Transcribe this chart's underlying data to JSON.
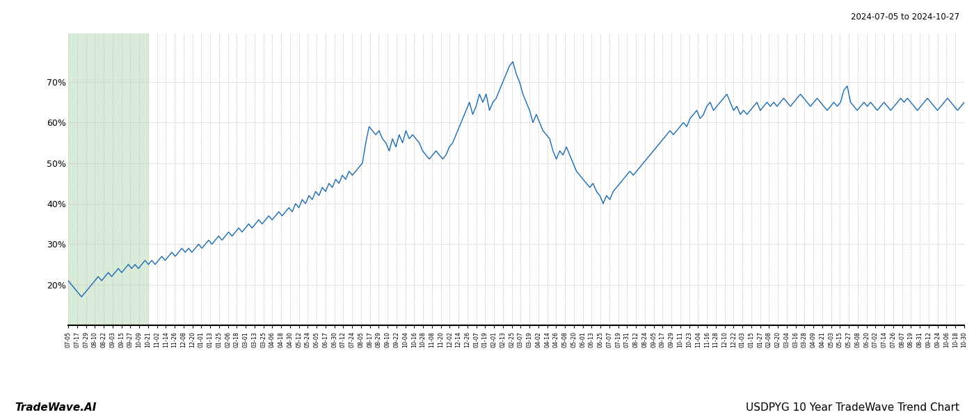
{
  "title_top_right": "2024-07-05 to 2024-10-27",
  "title_bottom_left": "TradeWave.AI",
  "title_bottom_right": "USDPYG 10 Year TradeWave Trend Chart",
  "line_color": "#1a6ab0",
  "shade_color": "#d8ead8",
  "background_color": "#ffffff",
  "grid_color": "#c8c8c8",
  "ylim": [
    10,
    82
  ],
  "yticks": [
    20,
    30,
    40,
    50,
    60,
    70
  ],
  "green_shade_end_label": "10-27",
  "x_tick_labels": [
    "07-05",
    "07-17",
    "07-29",
    "08-10",
    "08-22",
    "09-03",
    "09-15",
    "09-27",
    "10-09",
    "10-21",
    "11-02",
    "11-14",
    "11-26",
    "12-08",
    "12-20",
    "01-01",
    "01-13",
    "01-25",
    "02-06",
    "02-18",
    "03-01",
    "03-13",
    "03-25",
    "04-06",
    "04-18",
    "04-30",
    "05-12",
    "05-24",
    "06-05",
    "06-17",
    "06-30",
    "07-12",
    "07-24",
    "08-05",
    "08-17",
    "08-29",
    "09-10",
    "09-22",
    "10-04",
    "10-16",
    "10-28",
    "11-08",
    "11-20",
    "12-02",
    "12-14",
    "12-26",
    "01-07",
    "01-19",
    "02-01",
    "02-13",
    "02-25",
    "03-07",
    "03-19",
    "04-02",
    "04-14",
    "04-26",
    "05-08",
    "05-20",
    "06-01",
    "06-13",
    "06-25",
    "07-07",
    "07-19",
    "07-31",
    "08-12",
    "08-24",
    "09-05",
    "09-17",
    "09-29",
    "10-11",
    "10-23",
    "11-04",
    "11-16",
    "11-28",
    "12-10",
    "12-22",
    "01-03",
    "01-15",
    "01-27",
    "02-08",
    "02-20",
    "03-04",
    "03-16",
    "03-28",
    "04-09",
    "04-21",
    "05-03",
    "05-15",
    "05-27",
    "06-08",
    "06-20",
    "07-02",
    "07-14",
    "07-26",
    "08-07",
    "08-19",
    "08-31",
    "09-12",
    "09-24",
    "10-06",
    "10-18",
    "10-30"
  ],
  "green_shade_tick_index": 9,
  "y_values": [
    21,
    20,
    19,
    18,
    17,
    18,
    19,
    20,
    21,
    22,
    21,
    22,
    23,
    22,
    23,
    24,
    23,
    24,
    25,
    24,
    25,
    24,
    25,
    26,
    25,
    26,
    25,
    26,
    27,
    26,
    27,
    28,
    27,
    28,
    29,
    28,
    29,
    28,
    29,
    30,
    29,
    30,
    31,
    30,
    31,
    32,
    31,
    32,
    33,
    32,
    33,
    34,
    33,
    34,
    35,
    34,
    35,
    36,
    35,
    36,
    37,
    36,
    37,
    38,
    37,
    38,
    39,
    38,
    40,
    39,
    41,
    40,
    42,
    41,
    43,
    42,
    44,
    43,
    45,
    44,
    46,
    45,
    47,
    46,
    48,
    47,
    48,
    49,
    50,
    55,
    59,
    58,
    57,
    58,
    56,
    55,
    53,
    56,
    54,
    57,
    55,
    58,
    56,
    57,
    56,
    55,
    53,
    52,
    51,
    52,
    53,
    52,
    51,
    52,
    54,
    55,
    57,
    59,
    61,
    63,
    65,
    62,
    64,
    67,
    65,
    67,
    63,
    65,
    66,
    68,
    70,
    72,
    74,
    75,
    72,
    70,
    67,
    65,
    63,
    60,
    62,
    60,
    58,
    57,
    56,
    53,
    51,
    53,
    52,
    54,
    52,
    50,
    48,
    47,
    46,
    45,
    44,
    45,
    43,
    42,
    40,
    42,
    41,
    43,
    44,
    45,
    46,
    47,
    48,
    47,
    48,
    49,
    50,
    51,
    52,
    53,
    54,
    55,
    56,
    57,
    58,
    57,
    58,
    59,
    60,
    59,
    61,
    62,
    63,
    61,
    62,
    64,
    65,
    63,
    64,
    65,
    66,
    67,
    65,
    63,
    64,
    62,
    63,
    62,
    63,
    64,
    65,
    63,
    64,
    65,
    64,
    65,
    64,
    65,
    66,
    65,
    64,
    65,
    66,
    67,
    66,
    65,
    64,
    65,
    66,
    65,
    64,
    63,
    64,
    65,
    64,
    65,
    68,
    69,
    65,
    64,
    63,
    64,
    65,
    64,
    65,
    64,
    63,
    64,
    65,
    64,
    63,
    64,
    65,
    66,
    65,
    66,
    65,
    64,
    63,
    64,
    65,
    66,
    65,
    64,
    63,
    64,
    65,
    66,
    65,
    64,
    63,
    64,
    65
  ]
}
